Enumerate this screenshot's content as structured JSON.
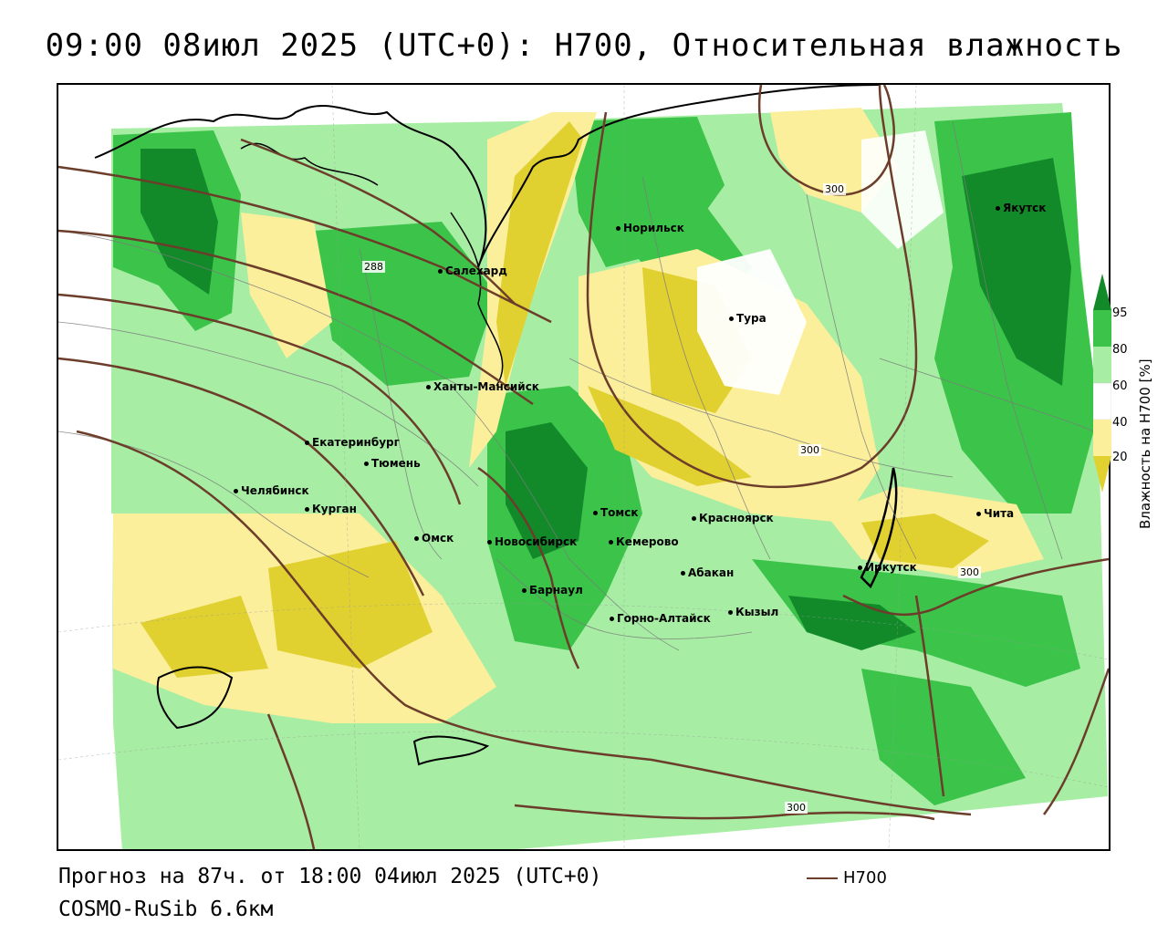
{
  "title": "09:00 08июл 2025 (UTC+0): H700, Относительная влажность",
  "footer": {
    "forecast": "Прогноз на 87ч. от 18:00 04июл 2025 (UTC+0)",
    "model": "COSMO-RuSib 6.6км"
  },
  "legend": {
    "line_label": "H700",
    "line_color": "#6b3d2a"
  },
  "colorbar": {
    "title": "Влажность на H700 [%]",
    "ticks": [
      "95",
      "80",
      "60",
      "40",
      "20"
    ],
    "colors": [
      "#138a2a",
      "#3cc44a",
      "#a7eda4",
      "#ffffff",
      "#fbef9c",
      "#e0d030"
    ]
  },
  "isolines": [
    "300",
    "300",
    "300",
    "300",
    "288"
  ],
  "cities": [
    {
      "name": "Якутск"
    },
    {
      "name": "Норильск"
    },
    {
      "name": "Салехард"
    },
    {
      "name": "Тура"
    },
    {
      "name": "Ханты-Мансийск"
    },
    {
      "name": "Екатеринбург"
    },
    {
      "name": "Тюмень"
    },
    {
      "name": "Челябинск"
    },
    {
      "name": "Курган"
    },
    {
      "name": "Омск"
    },
    {
      "name": "Новосибирск"
    },
    {
      "name": "Томск"
    },
    {
      "name": "Кемерово"
    },
    {
      "name": "Красноярск"
    },
    {
      "name": "Абакан"
    },
    {
      "name": "Барнаул"
    },
    {
      "name": "Горно-Алтайск"
    },
    {
      "name": "Кызыл"
    },
    {
      "name": "Иркутск"
    },
    {
      "name": "Чита"
    }
  ]
}
